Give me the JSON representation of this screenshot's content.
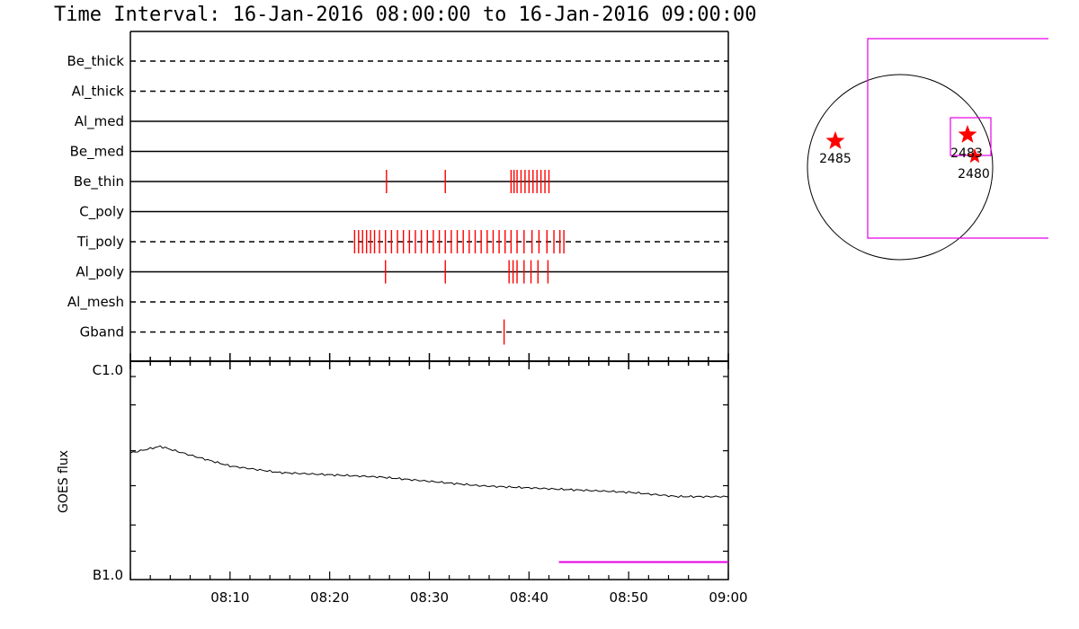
{
  "title": "Time Interval: 16-Jan-2016 08:00:00 to 16-Jan-2016 09:00:00",
  "colors": {
    "event": "#ff0000",
    "accent": "#e600e6",
    "axis": "#000000"
  },
  "chart_data": [
    {
      "type": "timeline",
      "x_range": [
        "08:00",
        "09:00"
      ],
      "rows": [
        {
          "label": "Be_thick",
          "style": "dashed",
          "events": []
        },
        {
          "label": "Al_thick",
          "style": "dashed",
          "events": []
        },
        {
          "label": "Al_med",
          "style": "solid",
          "events": []
        },
        {
          "label": "Be_med",
          "style": "solid",
          "events": []
        },
        {
          "label": "Be_thin",
          "style": "solid",
          "events": [
            25.7,
            31.6,
            38.2,
            38.5,
            38.8,
            39.2,
            39.6,
            40.0,
            40.4,
            40.8,
            41.2,
            41.6,
            42.0
          ]
        },
        {
          "label": "C_poly",
          "style": "solid",
          "events": []
        },
        {
          "label": "Ti_poly",
          "style": "dashed",
          "events": [
            22.5,
            22.9,
            23.3,
            23.7,
            24.1,
            24.5,
            25.0,
            25.6,
            26.2,
            26.8,
            27.4,
            28.0,
            28.6,
            29.2,
            29.8,
            30.4,
            31.0,
            31.6,
            32.2,
            32.8,
            33.4,
            34.0,
            34.6,
            35.2,
            35.8,
            36.4,
            37.0,
            37.6,
            38.2,
            38.8,
            39.5,
            40.3,
            41.0,
            41.8,
            42.5,
            43.1,
            43.5
          ]
        },
        {
          "label": "Al_poly",
          "style": "solid",
          "events": [
            25.6,
            31.6,
            38.0,
            38.4,
            38.8,
            39.5,
            40.2,
            40.9,
            41.9
          ]
        },
        {
          "label": "Al_mesh",
          "style": "dashed",
          "events": []
        },
        {
          "label": "Gband",
          "style": "dashed",
          "events": [
            37.5
          ]
        }
      ]
    },
    {
      "type": "line",
      "ylabel": "GOES flux",
      "y_ticks": [
        "C1.0",
        "B1.0"
      ],
      "x_tick_labels": [
        "08:10",
        "08:20",
        "08:30",
        "08:40",
        "08:50",
        "09:00"
      ],
      "x_minutes": [
        0,
        3,
        6,
        10,
        15,
        20,
        25,
        30,
        35,
        40,
        45,
        50,
        55,
        60
      ],
      "y_fraction": [
        0.58,
        0.61,
        0.57,
        0.52,
        0.49,
        0.48,
        0.47,
        0.45,
        0.43,
        0.42,
        0.41,
        0.4,
        0.38,
        0.38
      ],
      "magenta_segment_minutes": [
        43.0,
        60.0
      ],
      "magenta_segment_y_fraction": 0.08
    },
    {
      "type": "map",
      "regions": [
        {
          "label": "2485"
        },
        {
          "label": "2483"
        },
        {
          "label": "2480"
        }
      ]
    }
  ]
}
